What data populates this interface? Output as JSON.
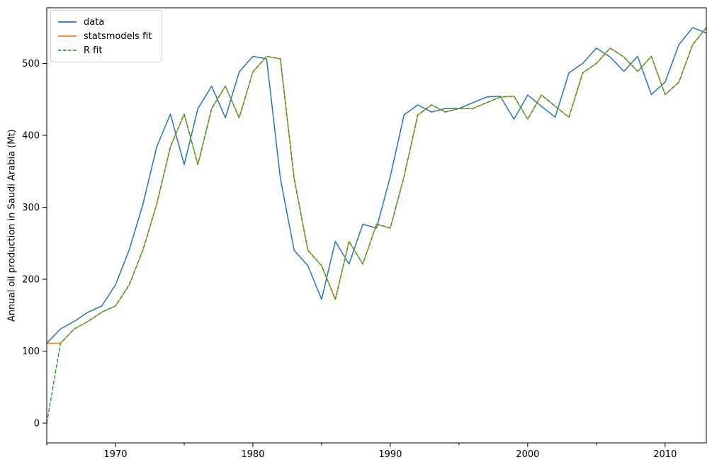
{
  "figure": {
    "background": "#ffffff"
  },
  "chart_data": {
    "type": "line",
    "title": "",
    "xlabel": "",
    "ylabel": "Annual oil production in Saudi Arabia (Mt)",
    "xlim": [
      1965,
      2013
    ],
    "ylim": [
      -27.5,
      577.3
    ],
    "xticks_major": [
      1970,
      1980,
      1990,
      2000,
      2010
    ],
    "xticks_minor": [
      1965,
      1975,
      1985,
      1995,
      2005
    ],
    "yticks": [
      0,
      100,
      200,
      300,
      400,
      500
    ],
    "grid": false,
    "legend_position": "upper left",
    "x": [
      1965,
      1966,
      1967,
      1968,
      1969,
      1970,
      1971,
      1972,
      1973,
      1974,
      1975,
      1976,
      1977,
      1978,
      1979,
      1980,
      1981,
      1982,
      1983,
      1984,
      1985,
      1986,
      1987,
      1988,
      1989,
      1990,
      1991,
      1992,
      1993,
      1994,
      1995,
      1996,
      1997,
      1998,
      1999,
      2000,
      2001,
      2002,
      2003,
      2004,
      2005,
      2006,
      2007,
      2008,
      2009,
      2010,
      2011,
      2012,
      2013
    ],
    "series": [
      {
        "name": "data",
        "color": "#1f77b4",
        "line_style": "solid",
        "values": [
          111.01,
          130.83,
          141.29,
          154.23,
          162.74,
          192.17,
          240.8,
          304.22,
          384.0,
          429.66,
          359.32,
          437.25,
          468.4,
          424.44,
          487.98,
          509.83,
          506.35,
          340.18,
          240.26,
          219.03,
          172.07,
          252.59,
          221.07,
          276.52,
          271.15,
          342.62,
          428.36,
          442.38,
          432.4,
          437.24,
          437.33,
          445.36,
          453.2,
          454.41,
          422.38,
          456.04,
          440.44,
          425.19,
          486.8,
          500.03,
          521.26,
          508.95,
          488.89,
          509.87,
          456.72,
          473.82,
          525.95,
          549.83,
          542.34
        ]
      },
      {
        "name": "statsmodels fit",
        "color": "#ff7f0e",
        "line_style": "solid",
        "values": [
          111.01,
          111.01,
          130.83,
          141.29,
          154.23,
          162.74,
          192.17,
          240.8,
          304.22,
          384.0,
          429.66,
          359.32,
          437.25,
          468.4,
          424.44,
          487.98,
          509.83,
          506.35,
          340.18,
          240.26,
          219.03,
          172.07,
          252.59,
          221.07,
          276.52,
          271.15,
          342.62,
          428.36,
          442.38,
          432.4,
          437.24,
          437.33,
          445.36,
          453.2,
          454.41,
          422.38,
          456.04,
          440.44,
          425.19,
          486.8,
          500.03,
          521.26,
          508.95,
          488.89,
          509.87,
          456.72,
          473.82,
          525.95,
          549.83
        ]
      },
      {
        "name": "R fit",
        "color": "#2ca02c",
        "line_style": "dashed",
        "values": [
          0.0,
          111.01,
          130.83,
          141.29,
          154.23,
          162.74,
          192.17,
          240.8,
          304.22,
          384.0,
          429.66,
          359.32,
          437.25,
          468.4,
          424.44,
          487.98,
          509.83,
          506.35,
          340.18,
          240.26,
          219.03,
          172.07,
          252.59,
          221.07,
          276.52,
          271.15,
          342.62,
          428.36,
          442.38,
          432.4,
          437.24,
          437.33,
          445.36,
          453.2,
          454.41,
          422.38,
          456.04,
          440.44,
          425.19,
          486.8,
          500.03,
          521.26,
          508.95,
          488.89,
          509.87,
          456.72,
          473.82,
          525.95,
          549.83
        ]
      }
    ]
  }
}
